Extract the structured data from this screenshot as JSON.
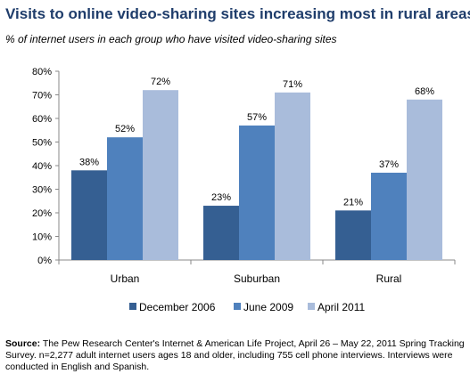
{
  "chart_data": {
    "type": "bar",
    "title": "Visits to online video-sharing sites increasing most in rural areas",
    "subtitle": "% of internet users in each group who have visited video-sharing sites",
    "categories": [
      "Urban",
      "Suburban",
      "Rural"
    ],
    "series": [
      {
        "name": "December 2006",
        "color": "#355f92",
        "values": [
          38,
          23,
          21
        ],
        "labels": [
          "38%",
          "23%",
          "21%"
        ]
      },
      {
        "name": "June 2009",
        "color": "#4f81bd",
        "values": [
          52,
          57,
          37
        ],
        "labels": [
          "52%",
          "57%",
          "37%"
        ]
      },
      {
        "name": "April 2011",
        "color": "#a9bcdb",
        "values": [
          72,
          71,
          68
        ],
        "labels": [
          "72%",
          "71%",
          "68%"
        ]
      }
    ],
    "ylim": [
      0,
      80
    ],
    "yticks": [
      "0%",
      "10%",
      "20%",
      "30%",
      "40%",
      "50%",
      "60%",
      "70%",
      "80%"
    ],
    "legend_position": "bottom",
    "grid": false
  },
  "source": {
    "label": "Source:",
    "text": " The Pew Research Center's Internet & American Life Project, April 26 – May 22, 2011 Spring Tracking Survey. n=2,277 adult internet users ages 18 and older, including 755 cell phone interviews. Interviews were conducted in English and Spanish."
  }
}
